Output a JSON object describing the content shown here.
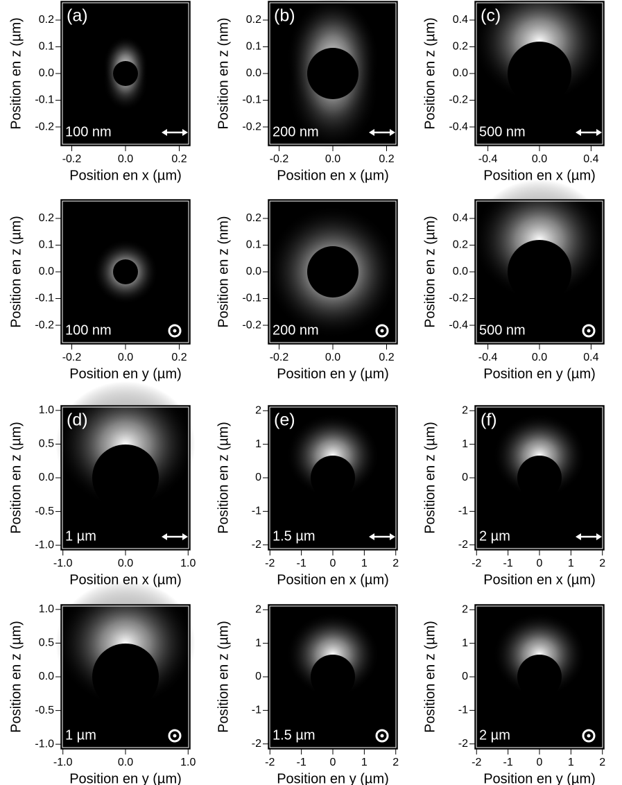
{
  "chart_data": [
    {
      "type": "image",
      "title": "(a)",
      "annotation": "100 nm",
      "polarization_icon": "arrow",
      "xlabel": "Position en x (µm)",
      "ylabel": "Position en z (µm)",
      "xlim": [
        -0.24,
        0.24
      ],
      "ylim": [
        -0.27,
        0.27
      ],
      "xticks": [
        -0.2,
        {
          "value": 0,
          "label": "0.0"
        },
        0.2
      ],
      "yticks": [
        -0.2,
        -0.1,
        {
          "value": 0,
          "label": "0.0"
        },
        0.1,
        0.2
      ]
    },
    {
      "type": "image",
      "title": "(b)",
      "annotation": "200 nm",
      "polarization_icon": "arrow",
      "xlabel": "Position en x (µm)",
      "ylabel": "Position en z (nm)",
      "xlim": [
        -0.24,
        0.24
      ],
      "ylim": [
        -0.27,
        0.27
      ],
      "xticks": [
        -0.2,
        {
          "value": 0,
          "label": "0.0"
        },
        0.2
      ],
      "yticks": [
        -0.2,
        -0.1,
        {
          "value": 0,
          "label": "0.0"
        },
        0.1,
        0.2
      ]
    },
    {
      "type": "image",
      "title": "(c)",
      "annotation": "500 nm",
      "polarization_icon": "arrow",
      "xlabel": "Position en x (µm)",
      "ylabel": "Position en z (µm)",
      "xlim": [
        -0.5,
        0.5
      ],
      "ylim": [
        -0.54,
        0.54
      ],
      "xticks": [
        -0.4,
        {
          "value": 0,
          "label": "0.0"
        },
        0.4
      ],
      "yticks": [
        -0.4,
        -0.2,
        {
          "value": 0,
          "label": "0.0"
        },
        0.2,
        0.4
      ]
    },
    {
      "type": "image",
      "annotation": "100 nm",
      "polarization_icon": "dot",
      "xlabel": "Position en y (µm)",
      "ylabel": "Position en z (µm)",
      "xlim": [
        -0.24,
        0.24
      ],
      "ylim": [
        -0.27,
        0.27
      ],
      "xticks": [
        -0.2,
        {
          "value": 0,
          "label": "0.0"
        },
        0.2
      ],
      "yticks": [
        -0.2,
        -0.1,
        {
          "value": 0,
          "label": "0.0"
        },
        0.1,
        0.2
      ]
    },
    {
      "type": "image",
      "annotation": "200 nm",
      "polarization_icon": "dot",
      "xlabel": "Position en y (µm)",
      "ylabel": "Position en z (nm)",
      "xlim": [
        -0.24,
        0.24
      ],
      "ylim": [
        -0.27,
        0.27
      ],
      "xticks": [
        -0.2,
        {
          "value": 0,
          "label": "0.0"
        },
        0.2
      ],
      "yticks": [
        -0.2,
        -0.1,
        {
          "value": 0,
          "label": "0.0"
        },
        0.1,
        0.2
      ]
    },
    {
      "type": "image",
      "annotation": "500 nm",
      "polarization_icon": "dot",
      "xlabel": "Position en y (µm)",
      "ylabel": "Position en z (µm)",
      "xlim": [
        -0.5,
        0.5
      ],
      "ylim": [
        -0.54,
        0.54
      ],
      "xticks": [
        -0.4,
        {
          "value": 0,
          "label": "0.0"
        },
        0.4
      ],
      "yticks": [
        -0.4,
        -0.2,
        {
          "value": 0,
          "label": "0.0"
        },
        0.2,
        0.4
      ]
    },
    {
      "type": "image",
      "title": "(d)",
      "annotation": "1 µm",
      "polarization_icon": "arrow",
      "xlabel": "Position en x (µm)",
      "ylabel": "Position en z (µm)",
      "xlim": [
        -1.03,
        1.03
      ],
      "ylim": [
        -1.07,
        1.07
      ],
      "xticks": [
        {
          "value": -1,
          "label": "-1.0"
        },
        {
          "value": 0,
          "label": "0.0"
        },
        {
          "value": 1,
          "label": "1.0"
        }
      ],
      "yticks": [
        {
          "value": -1,
          "label": "-1.0"
        },
        -0.5,
        {
          "value": 0,
          "label": "0.0"
        },
        0.5,
        {
          "value": 1,
          "label": "1.0"
        }
      ]
    },
    {
      "type": "image",
      "title": "(e)",
      "annotation": "1.5 µm",
      "polarization_icon": "arrow",
      "xlabel": "Position en x (µm)",
      "ylabel": "Position en z (µm)",
      "xlim": [
        -2.05,
        2.05
      ],
      "ylim": [
        -2.15,
        2.15
      ],
      "xticks": [
        -2,
        -1,
        0,
        1,
        2
      ],
      "yticks": [
        -2,
        -1,
        0,
        1,
        2
      ]
    },
    {
      "type": "image",
      "title": "(f)",
      "annotation": "2 µm",
      "polarization_icon": "arrow",
      "xlabel": "Position en x (µm)",
      "ylabel": "Position en z (µm)",
      "xlim": [
        -2.05,
        2.05
      ],
      "ylim": [
        -2.15,
        2.15
      ],
      "xticks": [
        -2,
        -1,
        0,
        1,
        2
      ],
      "yticks": [
        -2,
        -1,
        0,
        1,
        2
      ]
    },
    {
      "type": "image",
      "annotation": "1 µm",
      "polarization_icon": "dot",
      "xlabel": "Position en y (µm)",
      "ylabel": "Position en z (µm)",
      "xlim": [
        -1.03,
        1.03
      ],
      "ylim": [
        -1.07,
        1.07
      ],
      "xticks": [
        {
          "value": -1,
          "label": "-1.0"
        },
        {
          "value": 0,
          "label": "0.0"
        },
        {
          "value": 1,
          "label": "1.0"
        }
      ],
      "yticks": [
        {
          "value": -1,
          "label": "-1.0"
        },
        -0.5,
        {
          "value": 0,
          "label": "0.0"
        },
        0.5,
        {
          "value": 1,
          "label": "1.0"
        }
      ]
    },
    {
      "type": "image",
      "annotation": "1.5 µm",
      "polarization_icon": "dot",
      "xlabel": "Position en y (µm)",
      "ylabel": "Position en z (µm)",
      "xlim": [
        -2.05,
        2.05
      ],
      "ylim": [
        -2.15,
        2.15
      ],
      "xticks": [
        -2,
        -1,
        0,
        1,
        2
      ],
      "yticks": [
        -2,
        -1,
        0,
        1,
        2
      ]
    },
    {
      "type": "image",
      "annotation": "2 µm",
      "polarization_icon": "dot",
      "xlabel": "Position en y (µm)",
      "ylabel": "Position en z (µm)",
      "xlim": [
        -2.05,
        2.05
      ],
      "ylim": [
        -2.15,
        2.15
      ],
      "xticks": [
        -2,
        -1,
        0,
        1,
        2
      ],
      "yticks": [
        -2,
        -1,
        0,
        1,
        2
      ]
    }
  ]
}
